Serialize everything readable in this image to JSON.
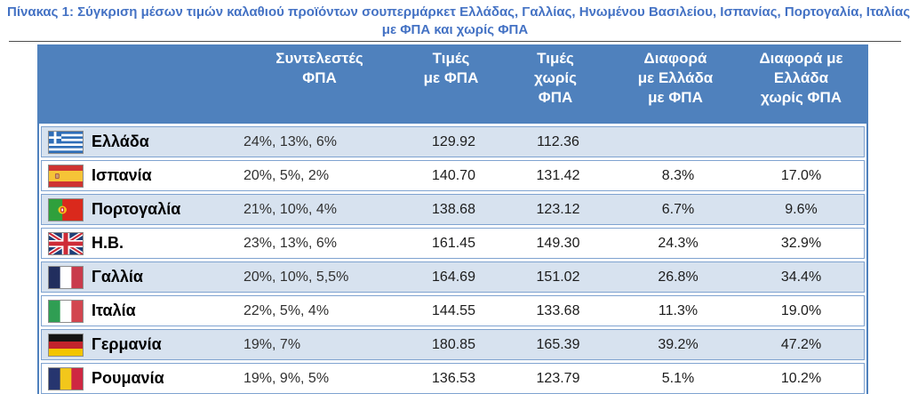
{
  "title": {
    "line1": "Πίνακας 1: Σύγκριση μέσων τιμών καλαθιού προϊόντων σουπερμάρκετ Ελλάδας, Γαλλίας, Ηνωμένου Βασιλείου, Ισπανίας, Πορτογαλία, Ιταλίας",
    "line2": "με ΦΠΑ και χωρίς ΦΠΑ"
  },
  "table": {
    "columns": [
      "",
      "Συντελεστές\nΦΠΑ",
      "Τιμές\nμε ΦΠΑ",
      "Τιμές\nχωρίς\nΦΠΑ",
      "Διαφορά\nμε Ελλάδα\nμε ΦΠΑ",
      "Διαφορά με\nΕλλάδα\nχωρίς ΦΠΑ"
    ],
    "rows": [
      {
        "country": "Ελλάδα",
        "flag": "greece",
        "vat_rates": "24%, 13%, 6%",
        "price_with_vat": "129.92",
        "price_without_vat": "112.36",
        "diff_with_vat": "",
        "diff_without_vat": ""
      },
      {
        "country": "Ισπανία",
        "flag": "spain",
        "vat_rates": "20%, 5%, 2%",
        "price_with_vat": "140.70",
        "price_without_vat": "131.42",
        "diff_with_vat": "8.3%",
        "diff_without_vat": "17.0%"
      },
      {
        "country": "Πορτογαλία",
        "flag": "portugal",
        "vat_rates": "21%, 10%, 4%",
        "price_with_vat": "138.68",
        "price_without_vat": "123.12",
        "diff_with_vat": "6.7%",
        "diff_without_vat": "9.6%"
      },
      {
        "country": "Η.Β.",
        "flag": "uk",
        "vat_rates": "23%, 13%, 6%",
        "price_with_vat": "161.45",
        "price_without_vat": "149.30",
        "diff_with_vat": "24.3%",
        "diff_without_vat": "32.9%"
      },
      {
        "country": "Γαλλία",
        "flag": "france",
        "vat_rates": "20%, 10%, 5,5%",
        "price_with_vat": "164.69",
        "price_without_vat": "151.02",
        "diff_with_vat": "26.8%",
        "diff_without_vat": "34.4%"
      },
      {
        "country": "Ιταλία",
        "flag": "italy",
        "vat_rates": "22%, 5%, 4%",
        "price_with_vat": "144.55",
        "price_without_vat": "133.68",
        "diff_with_vat": "11.3%",
        "diff_without_vat": "19.0%"
      },
      {
        "country": "Γερμανία",
        "flag": "germany",
        "vat_rates": "19%, 7%",
        "price_with_vat": "180.85",
        "price_without_vat": "165.39",
        "diff_with_vat": "39.2%",
        "diff_without_vat": "47.2%"
      },
      {
        "country": "Ρουμανία",
        "flag": "romania",
        "vat_rates": "19%, 9%, 5%",
        "price_with_vat": "136.53",
        "price_without_vat": "123.79",
        "diff_with_vat": "5.1%",
        "diff_without_vat": "10.2%"
      }
    ]
  },
  "colors": {
    "header_bg": "#4F81BD",
    "row_alt_bg": "#D7E2EF",
    "title_text": "#4472C4",
    "table_border": "#4F81BD",
    "row_border": "#7FA3D0"
  }
}
